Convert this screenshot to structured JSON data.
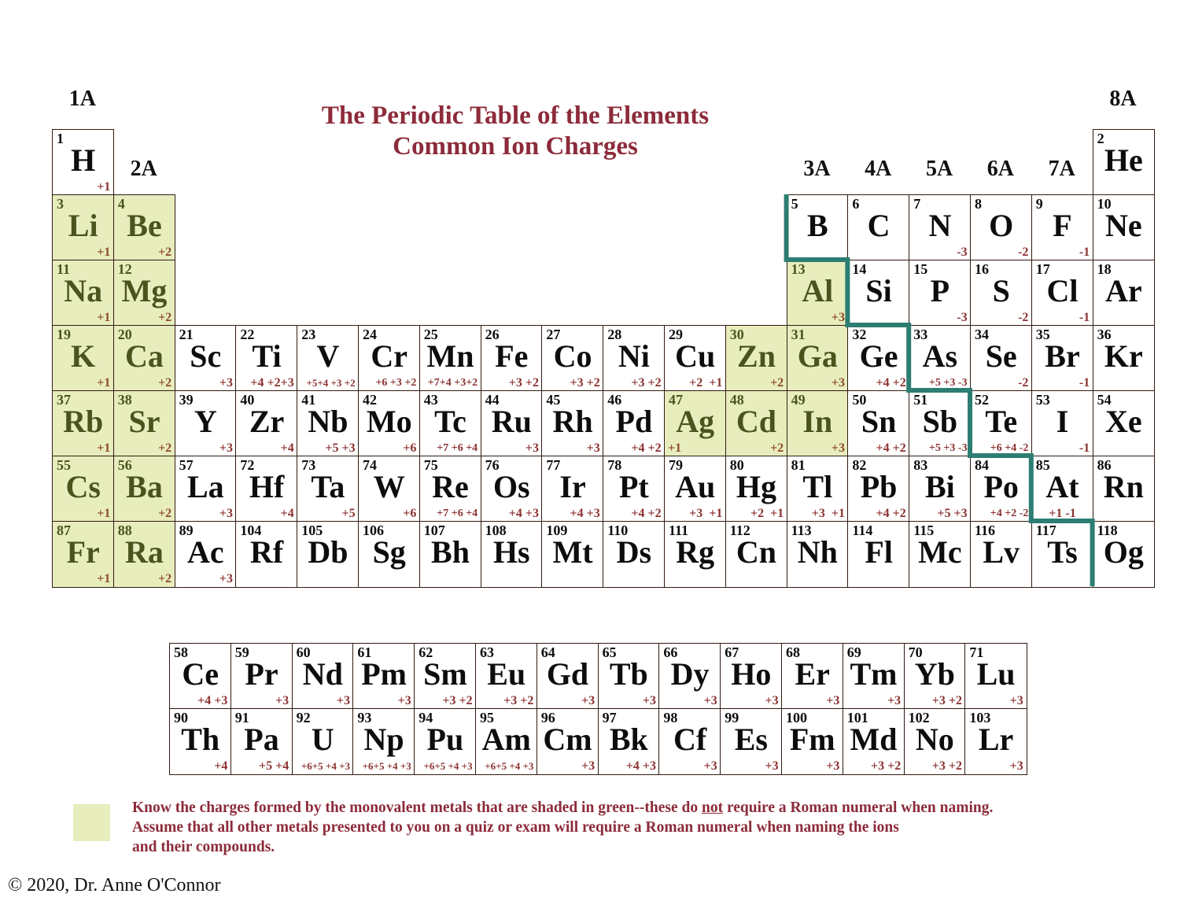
{
  "title": {
    "line1": "The Periodic Table of the Elements",
    "line2": "Common Ion Charges"
  },
  "colors": {
    "green_fill": "#e8edbe",
    "maroon_title": "#8c2b3a",
    "maroon_charge": "#8c3231",
    "green_cell_charge": "#8c4a28",
    "olive_symbol": "#4c541e",
    "teal_staircase": "#2d7d72",
    "cell_border": "#301b10"
  },
  "group_labels": [
    {
      "label": "1A",
      "col": 1,
      "pos": "top"
    },
    {
      "label": "8A",
      "col": 18,
      "pos": "top"
    },
    {
      "label": "2A",
      "col": 2,
      "pos": "mid"
    },
    {
      "label": "3A",
      "col": 13,
      "pos": "mid"
    },
    {
      "label": "4A",
      "col": 14,
      "pos": "mid"
    },
    {
      "label": "5A",
      "col": 15,
      "pos": "mid"
    },
    {
      "label": "6A",
      "col": 16,
      "pos": "mid"
    },
    {
      "label": "7A",
      "col": 17,
      "pos": "mid"
    }
  ],
  "elements": [
    {
      "n": 1,
      "s": "H",
      "p": 1,
      "g": 1,
      "c": "+1",
      "green": false
    },
    {
      "n": 2,
      "s": "He",
      "p": 1,
      "g": 18,
      "c": "",
      "green": false
    },
    {
      "n": 3,
      "s": "Li",
      "p": 2,
      "g": 1,
      "c": "+1",
      "green": true
    },
    {
      "n": 4,
      "s": "Be",
      "p": 2,
      "g": 2,
      "c": "+2",
      "green": true
    },
    {
      "n": 5,
      "s": "B",
      "p": 2,
      "g": 13,
      "c": "",
      "green": false
    },
    {
      "n": 6,
      "s": "C",
      "p": 2,
      "g": 14,
      "c": "",
      "green": false
    },
    {
      "n": 7,
      "s": "N",
      "p": 2,
      "g": 15,
      "c": "-3",
      "green": false
    },
    {
      "n": 8,
      "s": "O",
      "p": 2,
      "g": 16,
      "c": "-2",
      "green": false
    },
    {
      "n": 9,
      "s": "F",
      "p": 2,
      "g": 17,
      "c": "-1",
      "green": false
    },
    {
      "n": 10,
      "s": "Ne",
      "p": 2,
      "g": 18,
      "c": "",
      "green": false
    },
    {
      "n": 11,
      "s": "Na",
      "p": 3,
      "g": 1,
      "c": "+1",
      "green": true
    },
    {
      "n": 12,
      "s": "Mg",
      "p": 3,
      "g": 2,
      "c": "+2",
      "green": true
    },
    {
      "n": 13,
      "s": "Al",
      "p": 3,
      "g": 13,
      "c": "+3",
      "green": true
    },
    {
      "n": 14,
      "s": "Si",
      "p": 3,
      "g": 14,
      "c": "",
      "green": false
    },
    {
      "n": 15,
      "s": "P",
      "p": 3,
      "g": 15,
      "c": "-3",
      "green": false
    },
    {
      "n": 16,
      "s": "S",
      "p": 3,
      "g": 16,
      "c": "-2",
      "green": false
    },
    {
      "n": 17,
      "s": "Cl",
      "p": 3,
      "g": 17,
      "c": "-1",
      "green": false
    },
    {
      "n": 18,
      "s": "Ar",
      "p": 3,
      "g": 18,
      "c": "",
      "green": false
    },
    {
      "n": 19,
      "s": "K",
      "p": 4,
      "g": 1,
      "c": "+1",
      "green": true
    },
    {
      "n": 20,
      "s": "Ca",
      "p": 4,
      "g": 2,
      "c": "+2",
      "green": true
    },
    {
      "n": 21,
      "s": "Sc",
      "p": 4,
      "g": 3,
      "c": "+3",
      "green": false
    },
    {
      "n": 22,
      "s": "Ti",
      "p": 4,
      "g": 4,
      "c": "+4 +2+3",
      "green": false
    },
    {
      "n": 23,
      "s": "V",
      "p": 4,
      "g": 5,
      "c": "+5+4 +3 +2",
      "green": false
    },
    {
      "n": 24,
      "s": "Cr",
      "p": 4,
      "g": 6,
      "c": "+6 +3 +2",
      "green": false
    },
    {
      "n": 25,
      "s": "Mn",
      "p": 4,
      "g": 7,
      "c": "+7+4 +3+2",
      "green": false
    },
    {
      "n": 26,
      "s": "Fe",
      "p": 4,
      "g": 8,
      "c": "+3 +2",
      "green": false
    },
    {
      "n": 27,
      "s": "Co",
      "p": 4,
      "g": 9,
      "c": "+3 +2",
      "green": false
    },
    {
      "n": 28,
      "s": "Ni",
      "p": 4,
      "g": 10,
      "c": "+3 +2",
      "green": false
    },
    {
      "n": 29,
      "s": "Cu",
      "p": 4,
      "g": 11,
      "c": "+2  +1",
      "green": false
    },
    {
      "n": 30,
      "s": "Zn",
      "p": 4,
      "g": 12,
      "c": "+2",
      "green": true
    },
    {
      "n": 31,
      "s": "Ga",
      "p": 4,
      "g": 13,
      "c": "+3",
      "green": true
    },
    {
      "n": 32,
      "s": "Ge",
      "p": 4,
      "g": 14,
      "c": "+4 +2",
      "green": false
    },
    {
      "n": 33,
      "s": "As",
      "p": 4,
      "g": 15,
      "c": "+5 +3 -3",
      "green": false
    },
    {
      "n": 34,
      "s": "Se",
      "p": 4,
      "g": 16,
      "c": "-2",
      "green": false
    },
    {
      "n": 35,
      "s": "Br",
      "p": 4,
      "g": 17,
      "c": "-1",
      "green": false
    },
    {
      "n": 36,
      "s": "Kr",
      "p": 4,
      "g": 18,
      "c": "",
      "green": false
    },
    {
      "n": 37,
      "s": "Rb",
      "p": 5,
      "g": 1,
      "c": "+1",
      "green": true
    },
    {
      "n": 38,
      "s": "Sr",
      "p": 5,
      "g": 2,
      "c": "+2",
      "green": true
    },
    {
      "n": 39,
      "s": "Y",
      "p": 5,
      "g": 3,
      "c": "+3",
      "green": false
    },
    {
      "n": 40,
      "s": "Zr",
      "p": 5,
      "g": 4,
      "c": "+4",
      "green": false
    },
    {
      "n": 41,
      "s": "Nb",
      "p": 5,
      "g": 5,
      "c": "+5 +3",
      "green": false
    },
    {
      "n": 42,
      "s": "Mo",
      "p": 5,
      "g": 6,
      "c": "+6",
      "green": false
    },
    {
      "n": 43,
      "s": "Tc",
      "p": 5,
      "g": 7,
      "c": "+7 +6 +4",
      "green": false
    },
    {
      "n": 44,
      "s": "Ru",
      "p": 5,
      "g": 8,
      "c": "+3",
      "green": false
    },
    {
      "n": 45,
      "s": "Rh",
      "p": 5,
      "g": 9,
      "c": "+3",
      "green": false
    },
    {
      "n": 46,
      "s": "Pd",
      "p": 5,
      "g": 10,
      "c": "+4 +2",
      "green": false
    },
    {
      "n": 47,
      "s": "Ag",
      "p": 5,
      "g": 11,
      "c": "+1",
      "green": true,
      "align": "left"
    },
    {
      "n": 48,
      "s": "Cd",
      "p": 5,
      "g": 12,
      "c": "+2",
      "green": true
    },
    {
      "n": 49,
      "s": "In",
      "p": 5,
      "g": 13,
      "c": "+3",
      "green": true
    },
    {
      "n": 50,
      "s": "Sn",
      "p": 5,
      "g": 14,
      "c": "+4 +2",
      "green": false
    },
    {
      "n": 51,
      "s": "Sb",
      "p": 5,
      "g": 15,
      "c": "+5 +3 -3",
      "green": false
    },
    {
      "n": 52,
      "s": "Te",
      "p": 5,
      "g": 16,
      "c": "+6 +4 -2",
      "green": false
    },
    {
      "n": 53,
      "s": "I",
      "p": 5,
      "g": 17,
      "c": "-1",
      "green": false
    },
    {
      "n": 54,
      "s": "Xe",
      "p": 5,
      "g": 18,
      "c": "",
      "green": false
    },
    {
      "n": 55,
      "s": "Cs",
      "p": 6,
      "g": 1,
      "c": "+1",
      "green": true
    },
    {
      "n": 56,
      "s": "Ba",
      "p": 6,
      "g": 2,
      "c": "+2",
      "green": true
    },
    {
      "n": 57,
      "s": "La",
      "p": 6,
      "g": 3,
      "c": "+3",
      "green": false
    },
    {
      "n": 72,
      "s": "Hf",
      "p": 6,
      "g": 4,
      "c": "+4",
      "green": false
    },
    {
      "n": 73,
      "s": "Ta",
      "p": 6,
      "g": 5,
      "c": "+5",
      "green": false
    },
    {
      "n": 74,
      "s": "W",
      "p": 6,
      "g": 6,
      "c": "+6",
      "green": false
    },
    {
      "n": 75,
      "s": "Re",
      "p": 6,
      "g": 7,
      "c": "+7 +6 +4",
      "green": false
    },
    {
      "n": 76,
      "s": "Os",
      "p": 6,
      "g": 8,
      "c": "+4 +3",
      "green": false
    },
    {
      "n": 77,
      "s": "Ir",
      "p": 6,
      "g": 9,
      "c": "+4 +3",
      "green": false
    },
    {
      "n": 78,
      "s": "Pt",
      "p": 6,
      "g": 10,
      "c": "+4 +2",
      "green": false
    },
    {
      "n": 79,
      "s": "Au",
      "p": 6,
      "g": 11,
      "c": "+3  +1",
      "green": false
    },
    {
      "n": 80,
      "s": "Hg",
      "p": 6,
      "g": 12,
      "c": "+2  +1",
      "green": false
    },
    {
      "n": 81,
      "s": "Tl",
      "p": 6,
      "g": 13,
      "c": "+3  +1",
      "green": false
    },
    {
      "n": 82,
      "s": "Pb",
      "p": 6,
      "g": 14,
      "c": "+4 +2",
      "green": false
    },
    {
      "n": 83,
      "s": "Bi",
      "p": 6,
      "g": 15,
      "c": "+5 +3",
      "green": false
    },
    {
      "n": 84,
      "s": "Po",
      "p": 6,
      "g": 16,
      "c": "+4 +2 -2",
      "green": false
    },
    {
      "n": 85,
      "s": "At",
      "p": 6,
      "g": 17,
      "c": "+1 -1",
      "green": false,
      "align": "center"
    },
    {
      "n": 86,
      "s": "Rn",
      "p": 6,
      "g": 18,
      "c": "",
      "green": false
    },
    {
      "n": 87,
      "s": "Fr",
      "p": 7,
      "g": 1,
      "c": "+1",
      "green": true
    },
    {
      "n": 88,
      "s": "Ra",
      "p": 7,
      "g": 2,
      "c": "+2",
      "green": true
    },
    {
      "n": 89,
      "s": "Ac",
      "p": 7,
      "g": 3,
      "c": "+3",
      "green": false
    },
    {
      "n": 104,
      "s": "Rf",
      "p": 7,
      "g": 4,
      "c": "",
      "green": false
    },
    {
      "n": 105,
      "s": "Db",
      "p": 7,
      "g": 5,
      "c": "",
      "green": false
    },
    {
      "n": 106,
      "s": "Sg",
      "p": 7,
      "g": 6,
      "c": "",
      "green": false
    },
    {
      "n": 107,
      "s": "Bh",
      "p": 7,
      "g": 7,
      "c": "",
      "green": false
    },
    {
      "n": 108,
      "s": "Hs",
      "p": 7,
      "g": 8,
      "c": "",
      "green": false
    },
    {
      "n": 109,
      "s": "Mt",
      "p": 7,
      "g": 9,
      "c": "",
      "green": false
    },
    {
      "n": 110,
      "s": "Ds",
      "p": 7,
      "g": 10,
      "c": "",
      "green": false
    },
    {
      "n": 111,
      "s": "Rg",
      "p": 7,
      "g": 11,
      "c": "",
      "green": false
    },
    {
      "n": 112,
      "s": "Cn",
      "p": 7,
      "g": 12,
      "c": "",
      "green": false
    },
    {
      "n": 113,
      "s": "Nh",
      "p": 7,
      "g": 13,
      "c": "",
      "green": false
    },
    {
      "n": 114,
      "s": "Fl",
      "p": 7,
      "g": 14,
      "c": "",
      "green": false
    },
    {
      "n": 115,
      "s": "Mc",
      "p": 7,
      "g": 15,
      "c": "",
      "green": false
    },
    {
      "n": 116,
      "s": "Lv",
      "p": 7,
      "g": 16,
      "c": "",
      "green": false
    },
    {
      "n": 117,
      "s": "Ts",
      "p": 7,
      "g": 17,
      "c": "",
      "green": false
    },
    {
      "n": 118,
      "s": "Og",
      "p": 7,
      "g": 18,
      "c": "",
      "green": false
    }
  ],
  "fblock": [
    {
      "n": 58,
      "s": "Ce",
      "r": 1,
      "i": 1,
      "c": "+4 +3"
    },
    {
      "n": 59,
      "s": "Pr",
      "r": 1,
      "i": 2,
      "c": "+3"
    },
    {
      "n": 60,
      "s": "Nd",
      "r": 1,
      "i": 3,
      "c": "+3"
    },
    {
      "n": 61,
      "s": "Pm",
      "r": 1,
      "i": 4,
      "c": "+3"
    },
    {
      "n": 62,
      "s": "Sm",
      "r": 1,
      "i": 5,
      "c": "+3 +2"
    },
    {
      "n": 63,
      "s": "Eu",
      "r": 1,
      "i": 6,
      "c": "+3 +2"
    },
    {
      "n": 64,
      "s": "Gd",
      "r": 1,
      "i": 7,
      "c": "+3"
    },
    {
      "n": 65,
      "s": "Tb",
      "r": 1,
      "i": 8,
      "c": "+3"
    },
    {
      "n": 66,
      "s": "Dy",
      "r": 1,
      "i": 9,
      "c": "+3"
    },
    {
      "n": 67,
      "s": "Ho",
      "r": 1,
      "i": 10,
      "c": "+3"
    },
    {
      "n": 68,
      "s": "Er",
      "r": 1,
      "i": 11,
      "c": "+3"
    },
    {
      "n": 69,
      "s": "Tm",
      "r": 1,
      "i": 12,
      "c": "+3"
    },
    {
      "n": 70,
      "s": "Yb",
      "r": 1,
      "i": 13,
      "c": "+3 +2"
    },
    {
      "n": 71,
      "s": "Lu",
      "r": 1,
      "i": 14,
      "c": "+3"
    },
    {
      "n": 90,
      "s": "Th",
      "r": 2,
      "i": 1,
      "c": "+4"
    },
    {
      "n": 91,
      "s": "Pa",
      "r": 2,
      "i": 2,
      "c": "+5 +4"
    },
    {
      "n": 92,
      "s": "U",
      "r": 2,
      "i": 3,
      "c": "+6+5 +4 +3"
    },
    {
      "n": 93,
      "s": "Np",
      "r": 2,
      "i": 4,
      "c": "+6+5 +4 +3"
    },
    {
      "n": 94,
      "s": "Pu",
      "r": 2,
      "i": 5,
      "c": "+6+5 +4 +3"
    },
    {
      "n": 95,
      "s": "Am",
      "r": 2,
      "i": 6,
      "c": "+6+5 +4 +3"
    },
    {
      "n": 96,
      "s": "Cm",
      "r": 2,
      "i": 7,
      "c": "+3"
    },
    {
      "n": 97,
      "s": "Bk",
      "r": 2,
      "i": 8,
      "c": "+4 +3"
    },
    {
      "n": 98,
      "s": "Cf",
      "r": 2,
      "i": 9,
      "c": "+3"
    },
    {
      "n": 99,
      "s": "Es",
      "r": 2,
      "i": 10,
      "c": "+3"
    },
    {
      "n": 100,
      "s": "Fm",
      "r": 2,
      "i": 11,
      "c": "+3"
    },
    {
      "n": 101,
      "s": "Md",
      "r": 2,
      "i": 12,
      "c": "+3 +2"
    },
    {
      "n": 102,
      "s": "No",
      "r": 2,
      "i": 13,
      "c": "+3 +2"
    },
    {
      "n": 103,
      "s": "Lr",
      "r": 2,
      "i": 14,
      "c": "+3"
    }
  ],
  "legend": {
    "line1_before": "Know the charges formed by the monovalent metals that are shaded in green--these do ",
    "line1_not": "not",
    "line1_after": " require a Roman numeral when naming.",
    "line2": "Assume that all other metals presented to you on a quiz or exam will require a Roman numeral when naming the ions",
    "line3": "and their compounds."
  },
  "copyright": "© 2020, Dr. Anne O'Connor"
}
